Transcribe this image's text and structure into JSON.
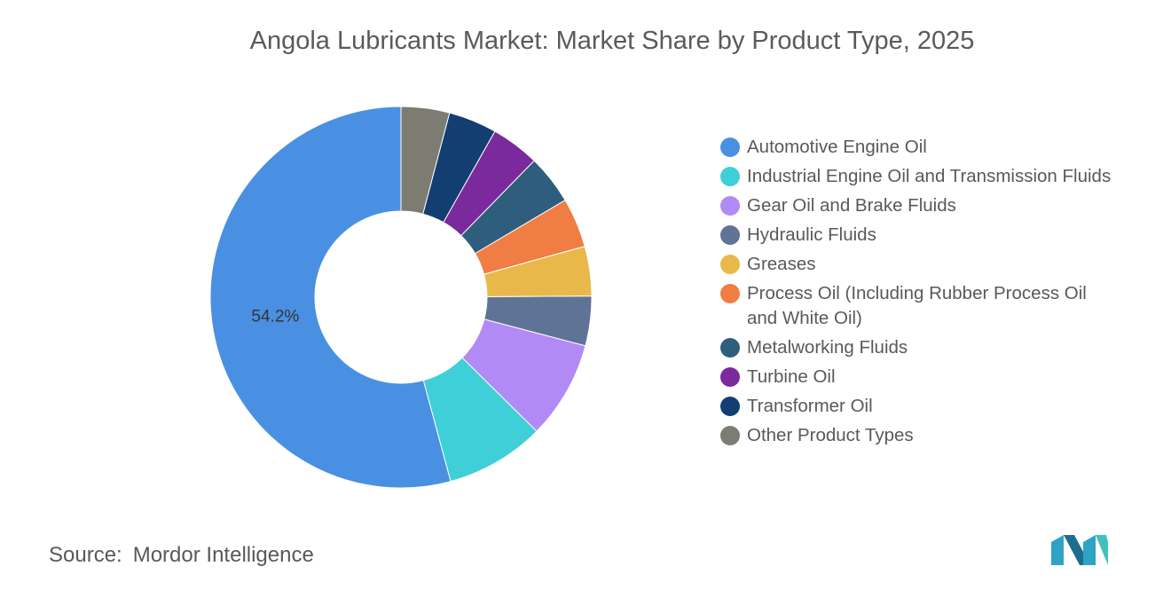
{
  "chart_data": {
    "type": "donut",
    "title": "Angola Lubricants Market: Market Share by Product Type, 2025",
    "categories": [
      "Automotive Engine Oil",
      "Industrial Engine Oil and Transmission Fluids",
      "Gear Oil and Brake Fluids",
      "Hydraulic Fluids",
      "Greases",
      "Process Oil (Including Rubber Process Oil and White Oil)",
      "Metalworking Fluids",
      "Turbine Oil",
      "Transformer Oil",
      "Other Product Types"
    ],
    "values": [
      54.2,
      8.4,
      8.3,
      4.2,
      4.2,
      4.2,
      4.2,
      4.1,
      4.1,
      4.1
    ],
    "value_labels": [
      "54.2%",
      null,
      null,
      null,
      null,
      null,
      null,
      null,
      null,
      null
    ],
    "colors": [
      "#4a90e2",
      "#3ecfd8",
      "#b28af5",
      "#5f7396",
      "#e8b94a",
      "#f07d43",
      "#2f5d7e",
      "#7a2a9c",
      "#133e72",
      "#7c7c72"
    ],
    "direction": "counterclockwise",
    "source_label": "Source:",
    "source": "Mordor Intelligence"
  }
}
